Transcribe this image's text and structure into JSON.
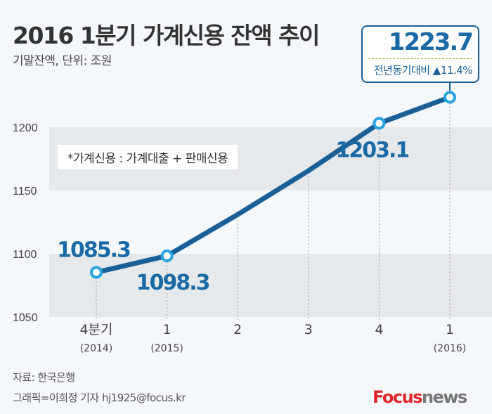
{
  "title": "2016 1분기 가계신용 잔액 추이",
  "subtitle": "기말잔액, 단위: 조원",
  "note": "*가계신용 : 가계대출 + 판매신용",
  "callout": {
    "value": "1223.7",
    "compare": "전년동기대비 ▲11.4%"
  },
  "source": "자료: 한국은행",
  "credit": "그래픽=이희정 기자 hj1925@focus.kr",
  "logo": {
    "part1": "Focus",
    "part2": "news"
  },
  "colors": {
    "line": "#1a5f96",
    "marker": "#29a3e0",
    "band": "#e6e9ec",
    "label": "#1a6aa6"
  },
  "chart_data": {
    "type": "line",
    "categories": [
      "4분기",
      "1",
      "2",
      "3",
      "4",
      "1"
    ],
    "category_sublabels": [
      "(2014)",
      "(2015)",
      "",
      "",
      "",
      "(2016)"
    ],
    "values": [
      1085.3,
      1098.3,
      1131,
      1165.6,
      1203.1,
      1223.7
    ],
    "data_labels": [
      "1085.3",
      "1098.3",
      "",
      "",
      "1203.1",
      "1223.7"
    ],
    "yticks": [
      1050,
      1100,
      1150,
      1200
    ],
    "ylim": [
      1050,
      1200
    ],
    "grid": "alternating horizontal bands, dotted vertical lines"
  }
}
